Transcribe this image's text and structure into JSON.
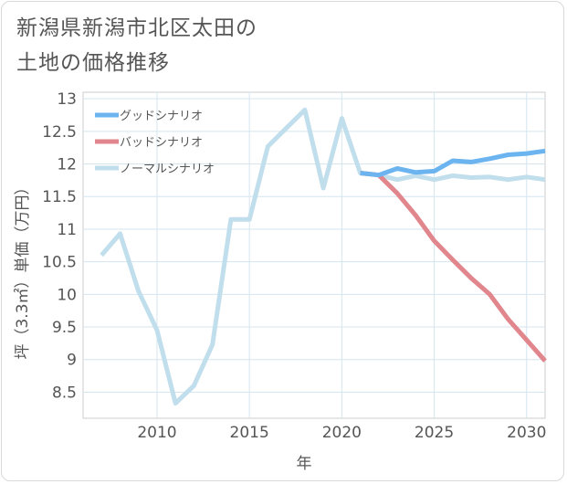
{
  "chart_data": {
    "type": "line",
    "title_lines": [
      "新潟県新潟市北区太田の",
      "土地の価格推移"
    ],
    "xlabel": "年",
    "ylabel": "坪（3.3㎡）単価（万円）",
    "xlim": [
      2006,
      2031
    ],
    "ylim": [
      8.1,
      13.1
    ],
    "x_ticks": [
      2010,
      2015,
      2020,
      2025,
      2030
    ],
    "y_ticks": [
      8.5,
      9,
      9.5,
      10,
      10.5,
      11,
      11.5,
      12,
      12.5,
      13
    ],
    "grid": true,
    "legend_position": "top-left",
    "series": [
      {
        "name": "グッドシナリオ",
        "color": "#6bb4f0",
        "x": [
          2021,
          2022,
          2023,
          2024,
          2025,
          2026,
          2027,
          2028,
          2029,
          2030,
          2031
        ],
        "values": [
          11.86,
          11.83,
          11.93,
          11.87,
          11.89,
          12.05,
          12.03,
          12.08,
          12.14,
          12.16,
          12.2
        ]
      },
      {
        "name": "バッドシナリオ",
        "color": "#e0868c",
        "x": [
          2021,
          2022,
          2023,
          2024,
          2025,
          2026,
          2027,
          2028,
          2029,
          2030,
          2031
        ],
        "values": [
          11.86,
          11.83,
          11.55,
          11.21,
          10.82,
          10.53,
          10.25,
          10.0,
          9.62,
          9.3,
          8.98
        ]
      },
      {
        "name": "ノーマルシナリオ",
        "color": "#c1deec",
        "x": [
          2007,
          2008,
          2009,
          2010,
          2011,
          2012,
          2013,
          2014,
          2015,
          2016,
          2017,
          2018,
          2019,
          2020,
          2021,
          2022,
          2023,
          2024,
          2025,
          2026,
          2027,
          2028,
          2029,
          2030,
          2031
        ],
        "values": [
          10.6,
          10.93,
          10.05,
          9.45,
          8.33,
          8.6,
          9.23,
          11.15,
          11.15,
          12.27,
          12.55,
          12.83,
          11.63,
          12.7,
          11.86,
          11.83,
          11.76,
          11.82,
          11.76,
          11.82,
          11.79,
          11.8,
          11.76,
          11.8,
          11.76
        ]
      }
    ]
  }
}
